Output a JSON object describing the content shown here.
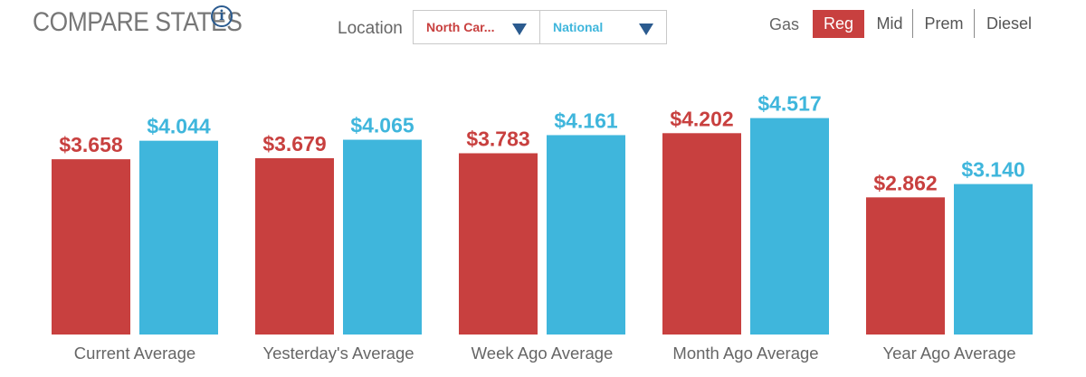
{
  "header": {
    "title": "COMPARE STATES",
    "info_icon": "info-icon"
  },
  "location": {
    "label": "Location",
    "primary": {
      "value": "North Car...",
      "color": "#c8403f"
    },
    "secondary": {
      "value": "National",
      "color": "#3fb6dc"
    }
  },
  "fuel": {
    "label": "Gas",
    "options": [
      "Reg",
      "Mid",
      "Prem",
      "Diesel"
    ],
    "selected": "Reg"
  },
  "colors": {
    "series_a": "#c8403f",
    "series_b": "#3fb6dc",
    "active_tab": "#c8403f"
  },
  "chart_data": {
    "type": "bar",
    "categories": [
      "Current Average",
      "Yesterday's Average",
      "Week Ago Average",
      "Month Ago Average",
      "Year Ago Average"
    ],
    "series": [
      {
        "values": [
          3.658,
          3.679,
          3.783,
          4.202,
          2.862
        ],
        "labels": [
          "$3.658",
          "$3.679",
          "$3.783",
          "$4.202",
          "$2.862"
        ]
      },
      {
        "values": [
          4.044,
          4.065,
          4.161,
          4.517,
          3.14
        ],
        "labels": [
          "$4.044",
          "$4.065",
          "$4.161",
          "$4.517",
          "$3.140"
        ]
      }
    ],
    "grid": false,
    "legend": "none"
  }
}
